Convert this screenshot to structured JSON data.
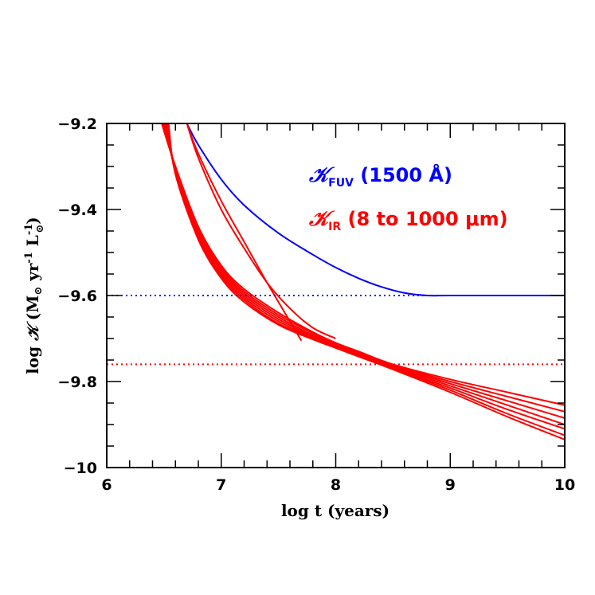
{
  "chart_data": {
    "type": "line",
    "xlabel": {
      "prefix": "log t (years)"
    },
    "ylabel": {
      "prefix": "log ",
      "symbol": "𝒦",
      "units": " (M",
      "sun": "⊙",
      "yr": " yr",
      "minus1": "-1",
      "L": " L",
      "close": ")"
    },
    "xlim": [
      6,
      10
    ],
    "ylim": [
      -10,
      -9.2
    ],
    "x_ticks": [
      6,
      7,
      8,
      9,
      10
    ],
    "x_tick_labels": [
      "6",
      "7",
      "8",
      "9",
      "10"
    ],
    "y_ticks": [
      -10,
      -9.8,
      -9.6,
      -9.4,
      -9.2
    ],
    "y_tick_labels": [
      "−10",
      "−9.8",
      "−9.6",
      "−9.4",
      "−9.2"
    ],
    "legend": [
      {
        "symbol": "𝒦",
        "subscript": "FUV",
        "text": " (1500 Å)",
        "color": "#0000ff"
      },
      {
        "symbol": "𝒦",
        "subscript": "IR",
        "text": " (8 to 1000 μm)",
        "color": "#ff0000"
      }
    ],
    "reference_lines": [
      {
        "y": -9.6,
        "style": "dotted",
        "color": "#0000ff"
      },
      {
        "y": -9.76,
        "style": "dotted",
        "color": "#ff0000"
      }
    ],
    "series": [
      {
        "color": "#0000ff",
        "x": [
          6.7,
          6.8,
          7.0,
          7.2,
          7.5,
          7.8,
          8.0,
          8.2,
          8.4,
          8.6,
          8.8,
          9.0,
          9.5,
          10.0
        ],
        "y": [
          -9.2,
          -9.25,
          -9.33,
          -9.39,
          -9.455,
          -9.505,
          -9.535,
          -9.56,
          -9.58,
          -9.594,
          -9.6,
          -9.6,
          -9.6,
          -9.6
        ]
      },
      {
        "color": "#ff0000",
        "x": [
          6.7,
          6.8,
          7.0,
          7.2,
          7.4,
          7.6,
          7.7
        ],
        "y": [
          -9.2,
          -9.27,
          -9.38,
          -9.475,
          -9.57,
          -9.66,
          -9.705
        ]
      },
      {
        "color": "#ff0000",
        "x": [
          6.7,
          6.8,
          7.0,
          7.2,
          7.4,
          7.6,
          7.8,
          8.0
        ],
        "y": [
          -9.2,
          -9.28,
          -9.4,
          -9.49,
          -9.57,
          -9.63,
          -9.675,
          -9.7
        ]
      },
      {
        "color": "#ff0000",
        "x": [
          6.48,
          6.6,
          6.8,
          7.0,
          7.2,
          7.5,
          7.8,
          8.0,
          8.2,
          8.5,
          9.0,
          9.5,
          10.0
        ],
        "y": [
          -9.2,
          -9.3,
          -9.44,
          -9.53,
          -9.585,
          -9.64,
          -9.685,
          -9.71,
          -9.73,
          -9.76,
          -9.795,
          -9.825,
          -9.855
        ]
      },
      {
        "color": "#ff0000",
        "x": [
          6.49,
          6.6,
          6.8,
          7.0,
          7.2,
          7.5,
          7.8,
          8.0,
          8.2,
          8.5,
          9.0,
          9.5,
          10.0
        ],
        "y": [
          -9.2,
          -9.3,
          -9.445,
          -9.535,
          -9.59,
          -9.645,
          -9.688,
          -9.712,
          -9.732,
          -9.762,
          -9.8,
          -9.835,
          -9.87
        ]
      },
      {
        "color": "#ff0000",
        "x": [
          6.5,
          6.6,
          6.8,
          7.0,
          7.2,
          7.5,
          7.8,
          8.0,
          8.2,
          8.5,
          9.0,
          9.5,
          10.0
        ],
        "y": [
          -9.2,
          -9.305,
          -9.45,
          -9.54,
          -9.595,
          -9.65,
          -9.692,
          -9.714,
          -9.735,
          -9.764,
          -9.805,
          -9.845,
          -9.885
        ]
      },
      {
        "color": "#ff0000",
        "x": [
          6.51,
          6.6,
          6.8,
          7.0,
          7.2,
          7.5,
          7.8,
          8.0,
          8.2,
          8.5,
          9.0,
          9.5,
          10.0
        ],
        "y": [
          -9.2,
          -9.31,
          -9.455,
          -9.545,
          -9.6,
          -9.655,
          -9.695,
          -9.716,
          -9.737,
          -9.766,
          -9.81,
          -9.855,
          -9.9
        ]
      },
      {
        "color": "#ff0000",
        "x": [
          6.52,
          6.6,
          6.8,
          7.0,
          7.2,
          7.5,
          7.8,
          8.0,
          8.2,
          8.5,
          9.0,
          9.5,
          10.0
        ],
        "y": [
          -9.2,
          -9.312,
          -9.46,
          -9.55,
          -9.605,
          -9.66,
          -9.698,
          -9.718,
          -9.738,
          -9.768,
          -9.815,
          -9.865,
          -9.91
        ]
      },
      {
        "color": "#ff0000",
        "x": [
          6.53,
          6.6,
          6.8,
          7.0,
          7.2,
          7.5,
          7.8,
          8.0,
          8.2,
          8.5,
          9.0,
          9.5,
          10.0
        ],
        "y": [
          -9.2,
          -9.315,
          -9.465,
          -9.555,
          -9.61,
          -9.665,
          -9.7,
          -9.72,
          -9.74,
          -9.77,
          -9.82,
          -9.875,
          -9.925
        ]
      },
      {
        "color": "#ff0000",
        "x": [
          6.54,
          6.6,
          6.8,
          7.0,
          7.2,
          7.5,
          7.8,
          8.0,
          8.2,
          8.5,
          9.0,
          9.5,
          10.0
        ],
        "y": [
          -9.2,
          -9.318,
          -9.47,
          -9.56,
          -9.615,
          -9.668,
          -9.702,
          -9.722,
          -9.742,
          -9.772,
          -9.825,
          -9.882,
          -9.935
        ]
      }
    ]
  }
}
